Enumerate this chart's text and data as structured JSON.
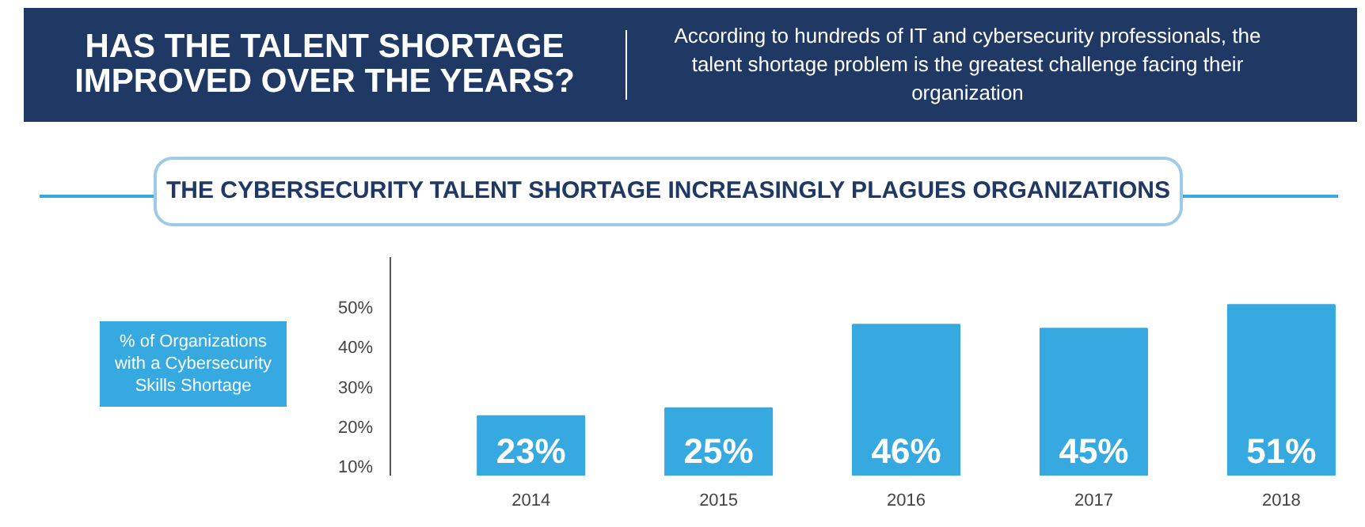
{
  "chart_data": {
    "type": "bar",
    "title": "HAS THE TALENT SHORTAGE IMPROVED OVER THE YEARS?",
    "subtitle": "THE CYBERSECURITY TALENT SHORTAGE INCREASINGLY PLAGUES ORGANIZATIONS",
    "annotations": [
      "According to hundreds of IT and cybersecurity professionals, the talent shortage problem is the greatest challenge facing their organization"
    ],
    "ylabel": "% of Organizations with a Cybersecurity Skills Shortage",
    "categories": [
      "2014",
      "2015",
      "2016",
      "2017",
      "2018"
    ],
    "values": [
      23,
      25,
      46,
      45,
      51
    ],
    "value_labels": [
      "23%",
      "25%",
      "46%",
      "45%",
      "51%"
    ],
    "color": "#36a9e1",
    "ylim": [
      8,
      63
    ],
    "yticks": [
      {
        "value": 10,
        "label": "10%"
      },
      {
        "value": 20,
        "label": "20%"
      },
      {
        "value": 30,
        "label": "30%"
      },
      {
        "value": 40,
        "label": "40%"
      },
      {
        "value": 50,
        "label": "50%"
      }
    ],
    "grid": false
  }
}
